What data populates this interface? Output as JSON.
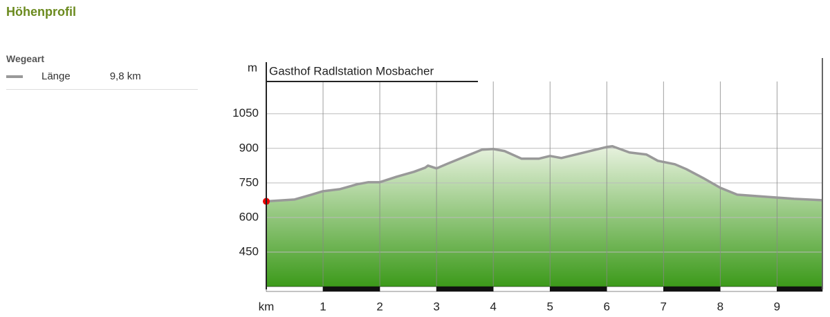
{
  "header": {
    "title": "Höhenprofil"
  },
  "legend": {
    "title": "Wegeart",
    "rows": [
      [
        "Länge",
        "9,8 km"
      ]
    ]
  },
  "chart_data": {
    "type": "area",
    "annotation": "Gasthof Radlstation Mosbacher",
    "x_label": "km",
    "y_label": "m",
    "x": [
      0,
      0.5,
      0.8,
      1.0,
      1.3,
      1.6,
      1.8,
      2.0,
      2.3,
      2.6,
      2.8,
      2.85,
      3.0,
      3.2,
      3.5,
      3.8,
      4.0,
      4.2,
      4.5,
      4.8,
      5.0,
      5.2,
      5.5,
      5.8,
      6.0,
      6.1,
      6.4,
      6.7,
      6.9,
      7.2,
      7.4,
      7.7,
      8.0,
      8.3,
      8.8,
      9.3,
      9.8
    ],
    "y": [
      670,
      678,
      699,
      714,
      723,
      744,
      753,
      753,
      777,
      798,
      816,
      825,
      813,
      834,
      864,
      894,
      897,
      888,
      855,
      855,
      867,
      858,
      876,
      894,
      906,
      909,
      882,
      873,
      846,
      831,
      810,
      771,
      729,
      699,
      690,
      681,
      675
    ],
    "xlim": [
      0,
      9.8
    ],
    "ylim": [
      300,
      1190
    ],
    "xticks": [
      1,
      2,
      3,
      4,
      5,
      6,
      7,
      8,
      9
    ],
    "yticks": [
      450,
      600,
      750,
      900,
      1050
    ],
    "color": "#999999",
    "fill_top": "#e8f2df",
    "fill_bottom": "#3c9a1a",
    "grid": true
  }
}
